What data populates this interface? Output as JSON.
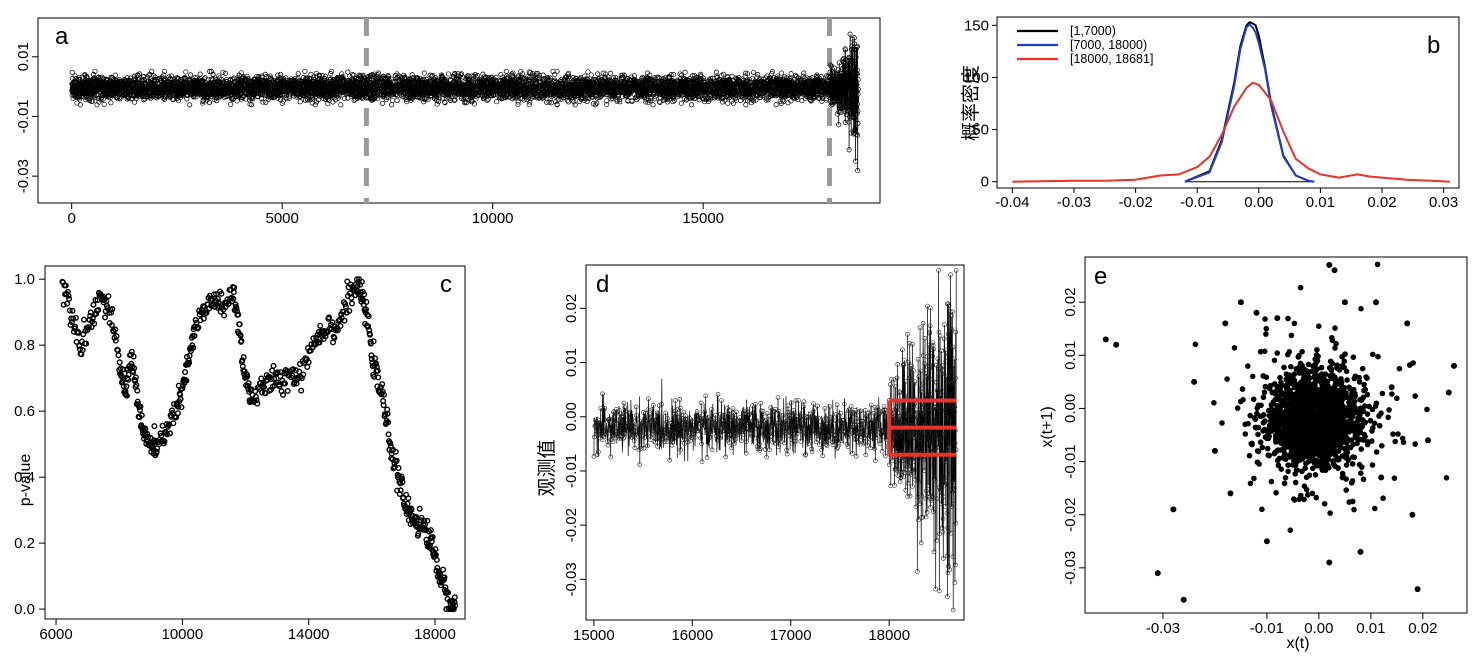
{
  "chart_data": [
    {
      "id": "a",
      "type": "scatter",
      "panel_label": "a",
      "xticks": [
        0,
        5000,
        10000,
        15000
      ],
      "yticks": [
        0.01,
        -0.01,
        -0.03
      ],
      "ytick_labels": [
        "0.01",
        "-0.01",
        "-0.03"
      ],
      "xlim": [
        -800,
        19200
      ],
      "ylim": [
        -0.039,
        0.023
      ],
      "n_points": 18681,
      "regimes": [
        {
          "x_from": 1,
          "x_to": 7000,
          "center": -0.0005,
          "spread": 0.0035
        },
        {
          "x_from": 7000,
          "x_to": 18000,
          "center": -0.0005,
          "spread": 0.0035
        },
        {
          "x_from": 18000,
          "x_to": 18681,
          "center": -0.0005,
          "spread_max": 0.02,
          "min": -0.035,
          "max": 0.02
        }
      ],
      "vertical_lines": [
        7000,
        18000
      ],
      "vline_color": "#9a9a9a"
    },
    {
      "id": "b",
      "type": "line",
      "panel_label": "b",
      "ylabel": "概率密度",
      "xticks": [
        -0.04,
        -0.03,
        -0.02,
        -0.01,
        0.0,
        0.01,
        0.02,
        0.03
      ],
      "xtick_labels": [
        "-0.04",
        "-0.03",
        "-0.02",
        "-0.01",
        "0.00",
        "0.01",
        "0.02",
        "0.03"
      ],
      "yticks": [
        0,
        50,
        100,
        150
      ],
      "xlim": [
        -0.0425,
        0.0325
      ],
      "ylim": [
        -6,
        158
      ],
      "legend_position": "top-left",
      "series": [
        {
          "name": "[1,7000)",
          "color": "#000000",
          "x": [
            -0.012,
            -0.008,
            -0.006,
            -0.004,
            -0.003,
            -0.002,
            -0.0015,
            -0.001,
            -0.0005,
            0.0,
            0.001,
            0.002,
            0.004,
            0.006,
            0.008,
            0.009
          ],
          "y": [
            0,
            10,
            40,
            95,
            130,
            150,
            153,
            152,
            150,
            140,
            110,
            75,
            25,
            6,
            1,
            0
          ]
        },
        {
          "name": "[7000, 18000)",
          "color": "#1f3fd0",
          "x": [
            -0.012,
            -0.008,
            -0.006,
            -0.004,
            -0.003,
            -0.002,
            -0.0015,
            -0.001,
            -0.0005,
            0.0,
            0.001,
            0.002,
            0.004,
            0.006,
            0.008,
            0.009
          ],
          "y": [
            0,
            9,
            38,
            92,
            127,
            148,
            151,
            148,
            143,
            133,
            108,
            73,
            24,
            6,
            1,
            0
          ]
        },
        {
          "name": "[18000, 18681]",
          "color": "#e8322a",
          "x": [
            -0.04,
            -0.03,
            -0.025,
            -0.02,
            -0.016,
            -0.013,
            -0.01,
            -0.008,
            -0.006,
            -0.004,
            -0.002,
            -0.001,
            0.0,
            0.002,
            0.004,
            0.006,
            0.008,
            0.01,
            0.013,
            0.016,
            0.018,
            0.02,
            0.024,
            0.028,
            0.031
          ],
          "y": [
            0,
            1,
            1,
            2,
            6,
            7,
            14,
            24,
            45,
            72,
            90,
            95,
            93,
            78,
            48,
            22,
            13,
            7,
            4,
            7,
            5,
            4,
            2,
            1,
            0
          ]
        }
      ]
    },
    {
      "id": "c",
      "type": "scatter",
      "panel_label": "c",
      "ylabel": "p-value",
      "xticks": [
        6000,
        10000,
        14000,
        18000
      ],
      "yticks": [
        0.0,
        0.2,
        0.4,
        0.6,
        0.8,
        1.0
      ],
      "ytick_labels": [
        "0.0",
        "0.2",
        "0.4",
        "0.6",
        "0.8",
        "1.0"
      ],
      "xlim": [
        5650,
        18950
      ],
      "ylim": [
        -0.03,
        1.04
      ],
      "series": [
        {
          "name": "",
          "x": [
            6200,
            6500,
            6800,
            7100,
            7400,
            7700,
            8000,
            8200,
            8400,
            8600,
            8800,
            9000,
            9200,
            9500,
            9800,
            10000,
            10200,
            10400,
            10700,
            11000,
            11300,
            11600,
            11800,
            12000,
            12200,
            12500,
            12800,
            13100,
            13400,
            13700,
            14000,
            14300,
            14600,
            14900,
            15200,
            15500,
            15700,
            15900,
            16100,
            16300,
            16500,
            16700,
            16900,
            17100,
            17300,
            17500,
            17700,
            17900,
            18100,
            18300,
            18500,
            18650
          ],
          "y": [
            0.99,
            0.9,
            0.8,
            0.88,
            0.95,
            0.9,
            0.75,
            0.65,
            0.78,
            0.62,
            0.52,
            0.5,
            0.48,
            0.55,
            0.6,
            0.66,
            0.75,
            0.85,
            0.9,
            0.95,
            0.9,
            0.97,
            0.85,
            0.7,
            0.64,
            0.66,
            0.7,
            0.68,
            0.72,
            0.7,
            0.78,
            0.83,
            0.86,
            0.85,
            0.93,
            0.98,
            0.95,
            0.85,
            0.72,
            0.66,
            0.55,
            0.45,
            0.38,
            0.3,
            0.28,
            0.26,
            0.24,
            0.2,
            0.12,
            0.06,
            0.01,
            0.0
          ]
        }
      ]
    },
    {
      "id": "d",
      "type": "scatter",
      "panel_label": "d",
      "ylabel": "观测值",
      "xticks": [
        15000,
        16000,
        17000,
        18000
      ],
      "yticks": [
        0.02,
        0.01,
        0.0,
        -0.01,
        -0.02,
        -0.03
      ],
      "ytick_labels": [
        "0.02",
        "0.01",
        "0.00",
        "-0.01",
        "-0.02",
        "-0.03"
      ],
      "xlim": [
        14920,
        18760
      ],
      "ylim": [
        -0.0375,
        0.028
      ],
      "regimes": [
        {
          "x_from": 15000,
          "x_to": 18000,
          "center": -0.002,
          "spread": 0.0045
        },
        {
          "x_from": 18000,
          "x_to": 18681,
          "min": -0.036,
          "max": 0.027
        }
      ],
      "bracket_color": "#e8322a",
      "bracket": {
        "x_from": 18000,
        "x_to": 18681,
        "y_levels": [
          0.003,
          -0.002,
          -0.007
        ]
      }
    },
    {
      "id": "e",
      "type": "scatter",
      "panel_label": "e",
      "xlabel": "x(t)",
      "ylabel": "x(t+1)",
      "xticks": [
        -0.03,
        -0.01,
        0.0,
        0.01,
        0.02
      ],
      "xtick_labels": [
        "-0.03",
        "-0.01",
        "0.00",
        "0.01",
        "0.02"
      ],
      "yticks": [
        0.02,
        0.01,
        0.0,
        -0.01,
        -0.02,
        -0.03
      ],
      "ytick_labels": [
        "0.02",
        "0.01",
        "0.00",
        "-0.01",
        "-0.02",
        "-0.03"
      ],
      "xlim": [
        -0.045,
        0.0285
      ],
      "ylim": [
        -0.0385,
        0.0285
      ],
      "core": {
        "center_x": -0.001,
        "center_y": -0.002,
        "spread": 0.004
      },
      "outliers": [
        [
          -0.041,
          0.013
        ],
        [
          -0.039,
          0.012
        ],
        [
          -0.031,
          -0.031
        ],
        [
          -0.026,
          -0.036
        ],
        [
          -0.028,
          -0.019
        ],
        [
          -0.024,
          0.005
        ],
        [
          -0.018,
          0.016
        ],
        [
          -0.015,
          0.02
        ],
        [
          -0.012,
          0.018
        ],
        [
          -0.01,
          -0.025
        ],
        [
          -0.008,
          0.017
        ],
        [
          0.002,
          0.027
        ],
        [
          0.003,
          0.026
        ],
        [
          0.005,
          0.02
        ],
        [
          0.011,
          0.02
        ],
        [
          0.017,
          0.016
        ],
        [
          0.026,
          0.008
        ],
        [
          0.025,
          0.003
        ],
        [
          0.019,
          -0.034
        ],
        [
          0.008,
          -0.027
        ],
        [
          0.002,
          -0.029
        ],
        [
          -0.017,
          -0.016
        ],
        [
          0.012,
          -0.013
        ],
        [
          0.021,
          -0.006
        ],
        [
          0.014,
          0.004
        ],
        [
          -0.02,
          -0.008
        ],
        [
          0.018,
          -0.02
        ]
      ]
    }
  ]
}
